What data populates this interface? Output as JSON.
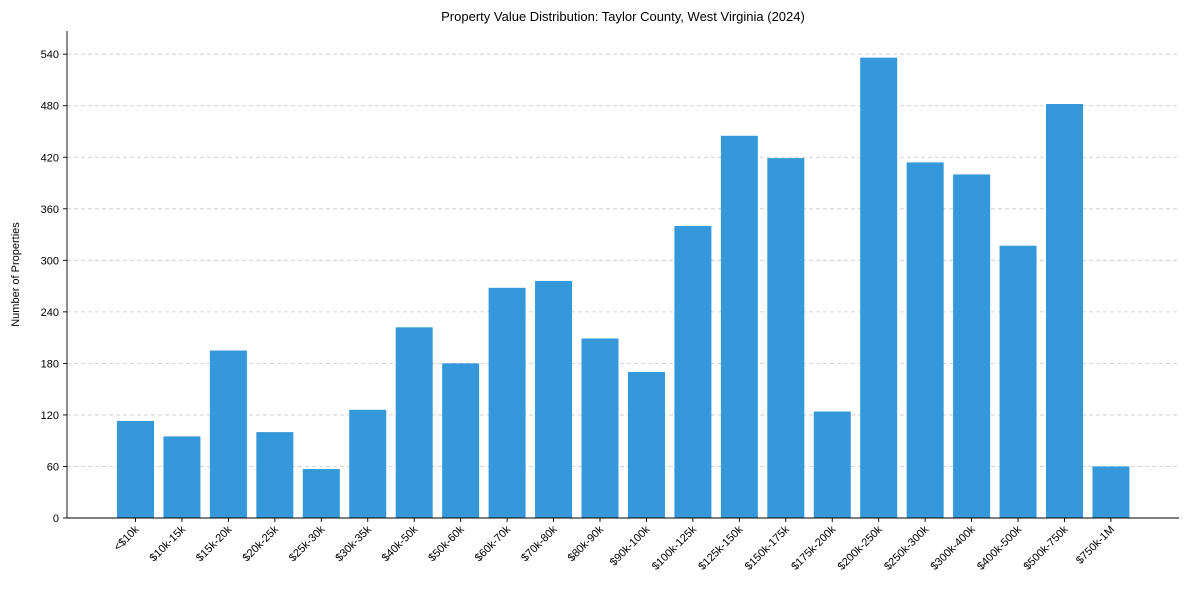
{
  "chart_data": {
    "type": "bar",
    "title": "Property Value Distribution: Taylor County, West Virginia (2024)",
    "xlabel": "",
    "ylabel": "Number of Properties",
    "ylim": [
      0,
      567
    ],
    "yticks": [
      0,
      60,
      120,
      180,
      240,
      300,
      360,
      420,
      480,
      540
    ],
    "grid": "y-dashed",
    "bar_color": "#3498db",
    "categories": [
      "<$10k",
      "$10k-15k",
      "$15k-20k",
      "$20k-25k",
      "$25k-30k",
      "$30k-35k",
      "$40k-50k",
      "$50k-60k",
      "$60k-70k",
      "$70k-80k",
      "$80k-90k",
      "$90k-100k",
      "$100k-125k",
      "$125k-150k",
      "$150k-175k",
      "$175k-200k",
      "$200k-250k",
      "$250k-300k",
      "$300k-400k",
      "$400k-500k",
      "$500k-750k",
      "$750k-1M"
    ],
    "values": [
      113,
      95,
      195,
      100,
      57,
      126,
      222,
      180,
      268,
      276,
      209,
      170,
      340,
      445,
      419,
      124,
      536,
      414,
      400,
      317,
      482,
      60
    ]
  }
}
